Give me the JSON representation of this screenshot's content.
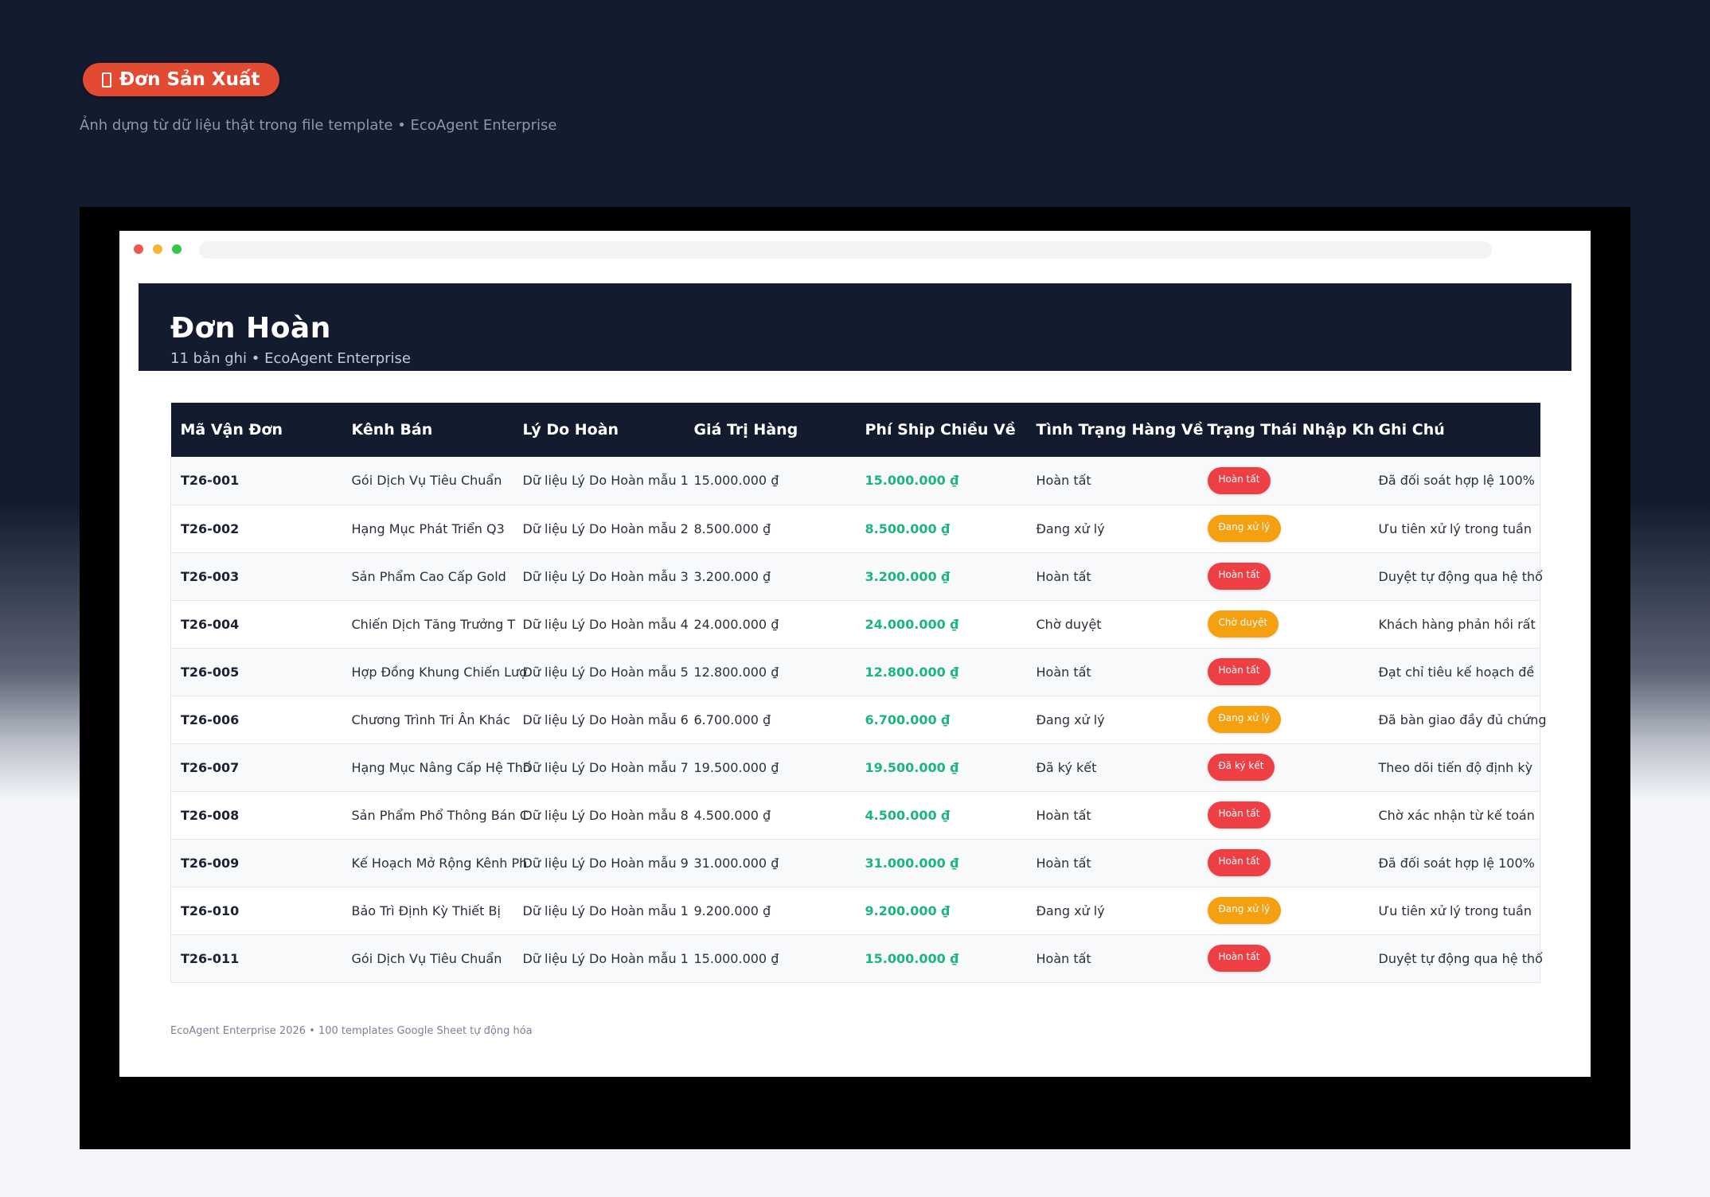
{
  "badge": {
    "label": "Đơn Sản Xuất"
  },
  "subtitle": "Ảnh dựng từ dữ liệu thật trong file template • EcoAgent Enterprise",
  "sheet": {
    "title": "Đơn Hoàn",
    "meta": "11 bản ghi • EcoAgent Enterprise",
    "columns": [
      "Mã Vận Đơn",
      "Kênh Bán",
      "Lý Do Hoàn",
      "Giá Trị Hàng",
      "Phí Ship Chiều Về",
      "Tình Trạng Hàng Về",
      "Trạng Thái Nhập Kh",
      "Ghi Chú"
    ],
    "rows": [
      {
        "code": "T26-001",
        "channel": "Gói Dịch Vụ Tiêu Chuẩn",
        "reason": "Dữ liệu Lý Do Hoàn mẫu 1",
        "value": "15.000.000 ₫",
        "ship": "15.000.000 ₫",
        "condition": "Hoàn tất",
        "status": "Hoàn tất",
        "status_color": "#ee3f44",
        "note": "Đã đối soát hợp lệ 100%"
      },
      {
        "code": "T26-002",
        "channel": "Hạng Mục Phát Triển Q3",
        "reason": "Dữ liệu Lý Do Hoàn mẫu 2",
        "value": "8.500.000 ₫",
        "ship": "8.500.000 ₫",
        "condition": "Đang xử lý",
        "status": "Đang xử lý",
        "status_color": "#f5a010",
        "note": "Ưu tiên xử lý trong tuần"
      },
      {
        "code": "T26-003",
        "channel": "Sản Phẩm Cao Cấp Gold",
        "reason": "Dữ liệu Lý Do Hoàn mẫu 3",
        "value": "3.200.000 ₫",
        "ship": "3.200.000 ₫",
        "condition": "Hoàn tất",
        "status": "Hoàn tất",
        "status_color": "#ee3f44",
        "note": "Duyệt tự động qua hệ thố"
      },
      {
        "code": "T26-004",
        "channel": "Chiến Dịch Tăng Trưởng T",
        "reason": "Dữ liệu Lý Do Hoàn mẫu 4",
        "value": "24.000.000 ₫",
        "ship": "24.000.000 ₫",
        "condition": "Chờ duyệt",
        "status": "Chờ duyệt",
        "status_color": "#f5a010",
        "note": "Khách hàng phản hồi rất"
      },
      {
        "code": "T26-005",
        "channel": "Hợp Đồng Khung Chiến Lượ",
        "reason": "Dữ liệu Lý Do Hoàn mẫu 5",
        "value": "12.800.000 ₫",
        "ship": "12.800.000 ₫",
        "condition": "Hoàn tất",
        "status": "Hoàn tất",
        "status_color": "#ee3f44",
        "note": "Đạt chỉ tiêu kế hoạch đề"
      },
      {
        "code": "T26-006",
        "channel": "Chương Trình Tri Ân Khác",
        "reason": "Dữ liệu Lý Do Hoàn mẫu 6",
        "value": "6.700.000 ₫",
        "ship": "6.700.000 ₫",
        "condition": "Đang xử lý",
        "status": "Đang xử lý",
        "status_color": "#f5a010",
        "note": "Đã bàn giao đầy đủ chứng"
      },
      {
        "code": "T26-007",
        "channel": "Hạng Mục Nâng Cấp Hệ Thố",
        "reason": "Dữ liệu Lý Do Hoàn mẫu 7",
        "value": "19.500.000 ₫",
        "ship": "19.500.000 ₫",
        "condition": "Đã ký kết",
        "status": "Đã ký kết",
        "status_color": "#ee3f44",
        "note": "Theo dõi tiến độ định kỳ"
      },
      {
        "code": "T26-008",
        "channel": "Sản Phẩm Phổ Thông Bán C",
        "reason": "Dữ liệu Lý Do Hoàn mẫu 8",
        "value": "4.500.000 ₫",
        "ship": "4.500.000 ₫",
        "condition": "Hoàn tất",
        "status": "Hoàn tất",
        "status_color": "#ee3f44",
        "note": "Chờ xác nhận từ kế toán"
      },
      {
        "code": "T26-009",
        "channel": "Kế Hoạch Mở Rộng Kênh Ph",
        "reason": "Dữ liệu Lý Do Hoàn mẫu 9",
        "value": "31.000.000 ₫",
        "ship": "31.000.000 ₫",
        "condition": "Hoàn tất",
        "status": "Hoàn tất",
        "status_color": "#ee3f44",
        "note": "Đã đối soát hợp lệ 100%"
      },
      {
        "code": "T26-010",
        "channel": "Bảo Trì Định Kỳ Thiết Bị",
        "reason": "Dữ liệu Lý Do Hoàn mẫu 1",
        "value": "9.200.000 ₫",
        "ship": "9.200.000 ₫",
        "condition": "Đang xử lý",
        "status": "Đang xử lý",
        "status_color": "#f5a010",
        "note": "Ưu tiên xử lý trong tuần"
      },
      {
        "code": "T26-011",
        "channel": "Gói Dịch Vụ Tiêu Chuẩn",
        "reason": "Dữ liệu Lý Do Hoàn mẫu 1",
        "value": "15.000.000 ₫",
        "ship": "15.000.000 ₫",
        "condition": "Hoàn tất",
        "status": "Hoàn tất",
        "status_color": "#ee3f44",
        "note": "Duyệt tự động qua hệ thố"
      }
    ]
  },
  "footer": "EcoAgent Enterprise 2026 • 100 templates Google Sheet tự động hóa"
}
